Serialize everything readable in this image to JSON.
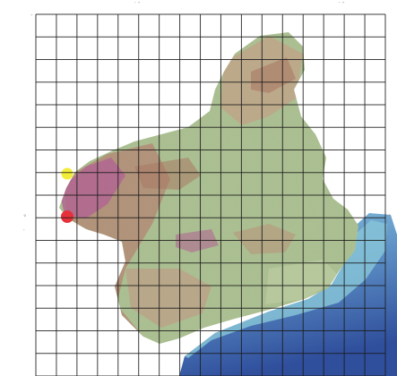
{
  "map": {
    "colors": {
      "background": "#ffffff",
      "grid_line": "#1b1b1b",
      "lowland_green": "#a9c08f",
      "hill_tan": "#c5a688",
      "mountain_brown": "#a7735d",
      "high_relief_magenta": "#b05f8f",
      "sea_shallow": "#7ab8d6",
      "sea_deep": "#3a5ca5",
      "point_yellow": "#f2ec3a",
      "point_red": "#e5313a"
    },
    "grid": {
      "columns": 17,
      "rows": 16
    },
    "markers": [
      {
        "name": "yellow-point",
        "color": "#f2ec3a"
      },
      {
        "name": "red-point",
        "color": "#e5313a"
      }
    ],
    "edge_marks": {
      "top_left": "-",
      "top_center": "′ ″",
      "top_right": "′ ″",
      "left_upper": "°",
      "left_lower": "′",
      "right_upper": "°",
      "right_lower": "′"
    }
  }
}
